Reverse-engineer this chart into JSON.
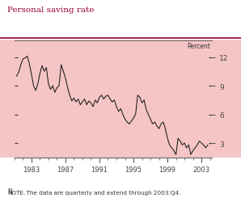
{
  "title": "Personal saving rate",
  "note": "NOTE.  The data are quarterly and extend through 2003:Q4.",
  "ylabel": "Percent",
  "bg_plot": "#f5c5c5",
  "bg_fig": "#ffffff",
  "line_color": "#1a1a1a",
  "title_color": "#9b0030",
  "tick_color": "#555555",
  "yticks": [
    3,
    6,
    9,
    12
  ],
  "xlim": [
    1981.0,
    2004.25
  ],
  "ylim": [
    1.5,
    13.8
  ],
  "xticks": [
    1983,
    1987,
    1991,
    1995,
    1999,
    2003
  ],
  "data": [
    [
      1981.25,
      10.0
    ],
    [
      1981.5,
      10.4
    ],
    [
      1981.75,
      11.2
    ],
    [
      1982.0,
      11.8
    ],
    [
      1982.25,
      11.9
    ],
    [
      1982.5,
      12.1
    ],
    [
      1982.75,
      11.3
    ],
    [
      1983.0,
      10.2
    ],
    [
      1983.25,
      9.0
    ],
    [
      1983.5,
      8.5
    ],
    [
      1983.75,
      9.2
    ],
    [
      1984.0,
      10.3
    ],
    [
      1984.25,
      11.1
    ],
    [
      1984.5,
      10.5
    ],
    [
      1984.75,
      10.9
    ],
    [
      1985.0,
      9.2
    ],
    [
      1985.25,
      8.6
    ],
    [
      1985.5,
      9.0
    ],
    [
      1985.75,
      8.3
    ],
    [
      1986.0,
      8.8
    ],
    [
      1986.25,
      9.0
    ],
    [
      1986.5,
      11.2
    ],
    [
      1986.75,
      10.5
    ],
    [
      1987.0,
      9.8
    ],
    [
      1987.25,
      8.8
    ],
    [
      1987.5,
      8.0
    ],
    [
      1987.75,
      7.4
    ],
    [
      1988.0,
      7.7
    ],
    [
      1988.25,
      7.3
    ],
    [
      1988.5,
      7.6
    ],
    [
      1988.75,
      7.0
    ],
    [
      1989.0,
      7.3
    ],
    [
      1989.25,
      7.6
    ],
    [
      1989.5,
      7.0
    ],
    [
      1989.75,
      7.4
    ],
    [
      1990.0,
      7.2
    ],
    [
      1990.25,
      6.8
    ],
    [
      1990.5,
      7.5
    ],
    [
      1990.75,
      7.2
    ],
    [
      1991.0,
      7.8
    ],
    [
      1991.25,
      8.0
    ],
    [
      1991.5,
      7.6
    ],
    [
      1991.75,
      7.9
    ],
    [
      1992.0,
      8.0
    ],
    [
      1992.25,
      7.6
    ],
    [
      1992.5,
      7.3
    ],
    [
      1992.75,
      7.5
    ],
    [
      1993.0,
      6.8
    ],
    [
      1993.25,
      6.3
    ],
    [
      1993.5,
      6.6
    ],
    [
      1993.75,
      6.0
    ],
    [
      1994.0,
      5.5
    ],
    [
      1994.25,
      5.2
    ],
    [
      1994.5,
      5.0
    ],
    [
      1994.75,
      5.3
    ],
    [
      1995.0,
      5.6
    ],
    [
      1995.25,
      6.0
    ],
    [
      1995.5,
      8.0
    ],
    [
      1995.75,
      7.8
    ],
    [
      1996.0,
      7.2
    ],
    [
      1996.25,
      7.5
    ],
    [
      1996.5,
      6.5
    ],
    [
      1996.75,
      6.0
    ],
    [
      1997.0,
      5.5
    ],
    [
      1997.25,
      5.0
    ],
    [
      1997.5,
      5.2
    ],
    [
      1997.75,
      4.8
    ],
    [
      1998.0,
      4.5
    ],
    [
      1998.25,
      5.0
    ],
    [
      1998.5,
      5.2
    ],
    [
      1998.75,
      4.5
    ],
    [
      1999.0,
      3.5
    ],
    [
      1999.25,
      2.8
    ],
    [
      1999.5,
      2.5
    ],
    [
      1999.75,
      2.2
    ],
    [
      2000.0,
      1.8
    ],
    [
      2000.25,
      3.5
    ],
    [
      2000.5,
      3.2
    ],
    [
      2000.75,
      2.8
    ],
    [
      2001.0,
      3.0
    ],
    [
      2001.25,
      2.5
    ],
    [
      2001.5,
      2.8
    ],
    [
      2001.75,
      1.8
    ],
    [
      2002.0,
      2.2
    ],
    [
      2002.25,
      2.5
    ],
    [
      2002.5,
      2.8
    ],
    [
      2002.75,
      3.2
    ],
    [
      2003.0,
      3.0
    ],
    [
      2003.25,
      2.8
    ],
    [
      2003.5,
      2.5
    ],
    [
      2003.75,
      2.8
    ]
  ]
}
